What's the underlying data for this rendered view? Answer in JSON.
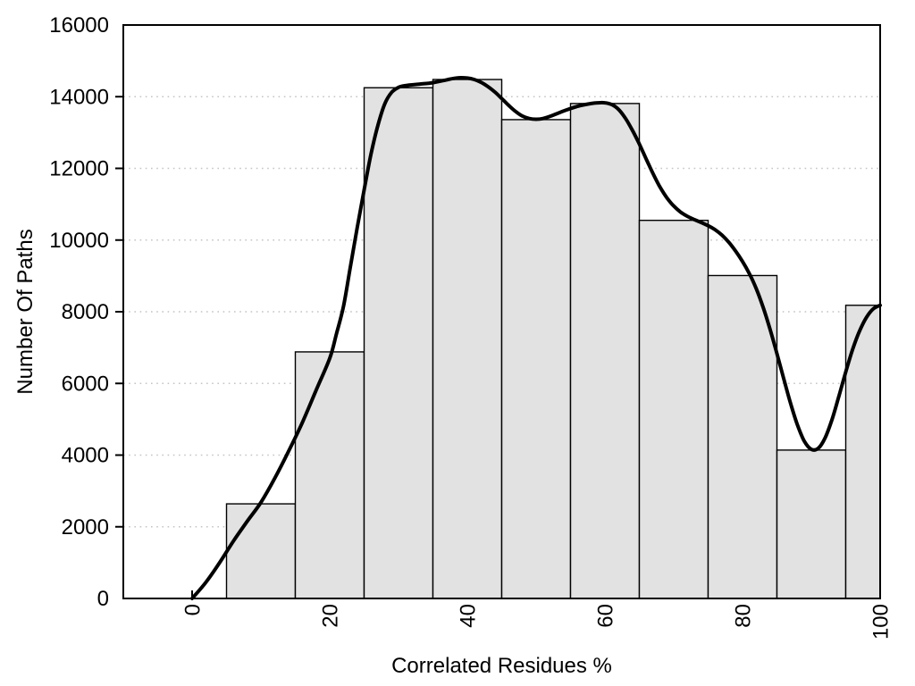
{
  "chart_data": {
    "type": "bar",
    "subtype": "histogram-with-density-curve",
    "title": "",
    "xlabel": "Correlated Residues %",
    "ylabel": "Number Of Paths",
    "xlim": [
      -10,
      100
    ],
    "ylim": [
      0,
      16000
    ],
    "x_ticks": [
      0,
      20,
      40,
      60,
      80,
      100
    ],
    "y_ticks": [
      0,
      2000,
      4000,
      6000,
      8000,
      10000,
      12000,
      14000,
      16000
    ],
    "x_tick_rotation_deg": -90,
    "grid": "horizontal-dotted",
    "legend": "none",
    "bins": [
      {
        "range": [
          5,
          15
        ],
        "count": 2640
      },
      {
        "range": [
          15,
          25
        ],
        "count": 6880
      },
      {
        "range": [
          25,
          35
        ],
        "count": 14250
      },
      {
        "range": [
          35,
          45
        ],
        "count": 14480
      },
      {
        "range": [
          45,
          55
        ],
        "count": 13360
      },
      {
        "range": [
          55,
          65
        ],
        "count": 13810
      },
      {
        "range": [
          65,
          75
        ],
        "count": 10550
      },
      {
        "range": [
          75,
          85
        ],
        "count": 9010
      },
      {
        "range": [
          85,
          95
        ],
        "count": 4140
      },
      {
        "range": [
          95,
          100
        ],
        "count": 8180
      }
    ],
    "density_curve": [
      [
        0,
        0
      ],
      [
        2,
        450
      ],
      [
        4,
        1000
      ],
      [
        6,
        1600
      ],
      [
        8,
        2150
      ],
      [
        10,
        2680
      ],
      [
        12,
        3350
      ],
      [
        14,
        4100
      ],
      [
        16,
        4900
      ],
      [
        18,
        5800
      ],
      [
        20,
        6700
      ],
      [
        21,
        7400
      ],
      [
        22,
        8150
      ],
      [
        23,
        9250
      ],
      [
        24,
        10350
      ],
      [
        25,
        11400
      ],
      [
        26,
        12400
      ],
      [
        27,
        13200
      ],
      [
        28,
        13800
      ],
      [
        29,
        14120
      ],
      [
        30,
        14260
      ],
      [
        31,
        14310
      ],
      [
        33,
        14350
      ],
      [
        35,
        14390
      ],
      [
        37,
        14470
      ],
      [
        38,
        14510
      ],
      [
        39,
        14530
      ],
      [
        40,
        14520
      ],
      [
        41,
        14480
      ],
      [
        42,
        14400
      ],
      [
        43,
        14280
      ],
      [
        44,
        14130
      ],
      [
        45,
        13950
      ],
      [
        46,
        13760
      ],
      [
        47,
        13590
      ],
      [
        48,
        13460
      ],
      [
        49,
        13390
      ],
      [
        50,
        13370
      ],
      [
        51,
        13390
      ],
      [
        52,
        13450
      ],
      [
        54,
        13600
      ],
      [
        56,
        13730
      ],
      [
        58,
        13810
      ],
      [
        59,
        13830
      ],
      [
        60,
        13830
      ],
      [
        61,
        13780
      ],
      [
        62,
        13640
      ],
      [
        63,
        13390
      ],
      [
        64,
        13060
      ],
      [
        65,
        12680
      ],
      [
        66,
        12260
      ],
      [
        67,
        11850
      ],
      [
        68,
        11480
      ],
      [
        69,
        11180
      ],
      [
        70,
        10950
      ],
      [
        71,
        10780
      ],
      [
        72,
        10660
      ],
      [
        73,
        10570
      ],
      [
        74,
        10490
      ],
      [
        75,
        10400
      ],
      [
        76,
        10290
      ],
      [
        77,
        10140
      ],
      [
        78,
        9940
      ],
      [
        79,
        9690
      ],
      [
        80,
        9400
      ],
      [
        81,
        9060
      ],
      [
        82,
        8640
      ],
      [
        83,
        8120
      ],
      [
        84,
        7510
      ],
      [
        85,
        6830
      ],
      [
        86,
        6120
      ],
      [
        87,
        5430
      ],
      [
        88,
        4830
      ],
      [
        89,
        4380
      ],
      [
        90,
        4160
      ],
      [
        91,
        4190
      ],
      [
        92,
        4480
      ],
      [
        93,
        4990
      ],
      [
        94,
        5640
      ],
      [
        95,
        6320
      ],
      [
        96,
        6950
      ],
      [
        97,
        7460
      ],
      [
        98,
        7840
      ],
      [
        99,
        8080
      ],
      [
        100,
        8180
      ]
    ],
    "styles": {
      "background": "#ffffff",
      "bar_fill": "#e2e2e2",
      "bar_border": "#000000",
      "curve_color": "#000000",
      "grid_color": "#c4c4c4",
      "axis_color": "#000000",
      "text_color": "#000000"
    }
  }
}
